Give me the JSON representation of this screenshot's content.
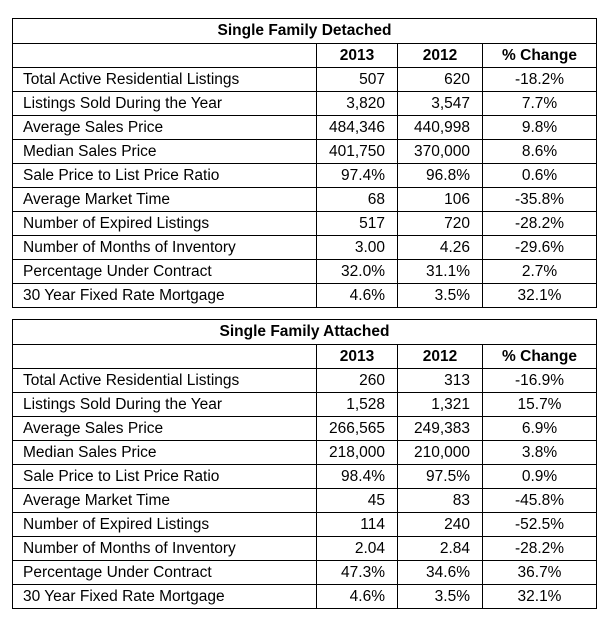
{
  "chart_data": [
    {
      "type": "table",
      "title": "Single Family Detached",
      "columns": [
        "",
        "2013",
        "2012",
        "% Change"
      ],
      "rows": [
        [
          "Total Active Residential Listings",
          "507",
          "620",
          "-18.2%"
        ],
        [
          "Listings Sold During the Year",
          "3,820",
          "3,547",
          "7.7%"
        ],
        [
          "Average Sales Price",
          "484,346",
          "440,998",
          "9.8%"
        ],
        [
          "Median Sales Price",
          "401,750",
          "370,000",
          "8.6%"
        ],
        [
          "Sale Price to List Price Ratio",
          "97.4%",
          "96.8%",
          "0.6%"
        ],
        [
          "Average Market Time",
          "68",
          "106",
          "-35.8%"
        ],
        [
          "Number of Expired Listings",
          "517",
          "720",
          "-28.2%"
        ],
        [
          "Number of Months of Inventory",
          "3.00",
          "4.26",
          "-29.6%"
        ],
        [
          "Percentage Under Contract",
          "32.0%",
          "31.1%",
          "2.7%"
        ],
        [
          "30 Year Fixed Rate Mortgage",
          "4.6%",
          "3.5%",
          "32.1%"
        ]
      ]
    },
    {
      "type": "table",
      "title": "Single Family Attached",
      "columns": [
        "",
        "2013",
        "2012",
        "% Change"
      ],
      "rows": [
        [
          "Total Active Residential Listings",
          "260",
          "313",
          "-16.9%"
        ],
        [
          "Listings Sold During the Year",
          "1,528",
          "1,321",
          "15.7%"
        ],
        [
          "Average Sales Price",
          "266,565",
          "249,383",
          "6.9%"
        ],
        [
          "Median Sales Price",
          "218,000",
          "210,000",
          "3.8%"
        ],
        [
          "Sale Price to List Price Ratio",
          "98.4%",
          "97.5%",
          "0.9%"
        ],
        [
          "Average Market Time",
          "45",
          "83",
          "-45.8%"
        ],
        [
          "Number of Expired Listings",
          "114",
          "240",
          "-52.5%"
        ],
        [
          "Number of Months of Inventory",
          "2.04",
          "2.84",
          "-28.2%"
        ],
        [
          "Percentage Under Contract",
          "47.3%",
          "34.6%",
          "36.7%"
        ],
        [
          "30 Year Fixed Rate Mortgage",
          "4.6%",
          "3.5%",
          "32.1%"
        ]
      ]
    }
  ]
}
